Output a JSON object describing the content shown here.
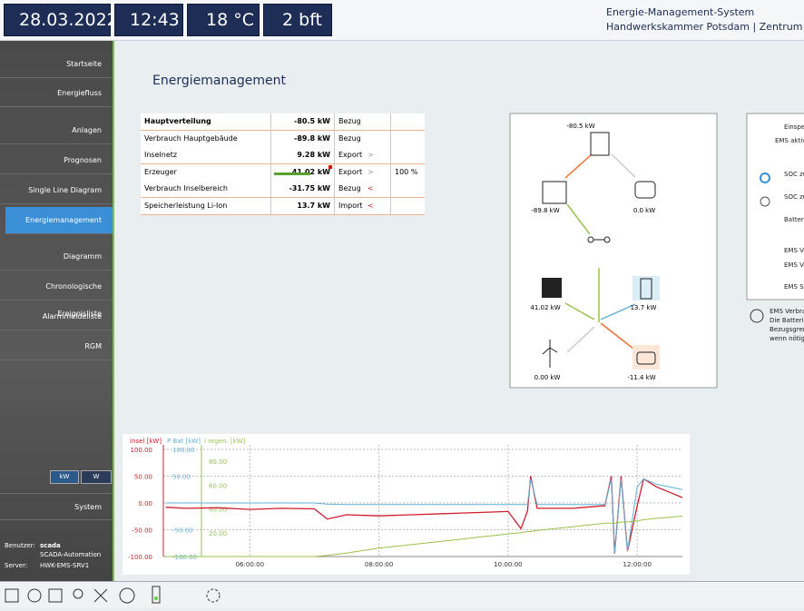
{
  "header": {
    "date": "28.03.2022",
    "time": "12:43",
    "temperature": "18 °C",
    "wind": "2 bft",
    "title": "Energie-Management-System",
    "subtitle": "Handwerkskammer Potsdam | Zentrum f. Gew"
  },
  "nav": {
    "items": [
      "Startseite",
      "Energiefluss",
      "Anlagen",
      "Prognosen",
      "Single Line Diagram",
      "Energiemanagement",
      "Diagramm",
      "Chronologische Ereignisliste",
      "Alarmmeldeliste",
      "RGM"
    ],
    "active": 5,
    "units": [
      "kW",
      "W"
    ],
    "system": "System"
  },
  "user": {
    "user_label": "Benutzer:",
    "user": "scada",
    "group": "SCADA-Automation",
    "server_label": "Server:",
    "server": "HWK-EMS-SRV1"
  },
  "page_title": "Energiemanagement",
  "table": {
    "rows": [
      [
        "Hauptverteilung",
        "-80.5 kW",
        "Bezug",
        "",
        ""
      ],
      [
        "Verbrauch Hauptgebäude",
        "-89.8 kW",
        "Bezug",
        "",
        ""
      ],
      [
        "Inselnetz",
        "9.28 kW",
        "Export",
        ">",
        ""
      ],
      [
        "Erzeuger",
        "41.02 kW",
        "Export",
        ">",
        "100 %"
      ],
      [
        "Verbrauch Inselbereich",
        "-31.75 kW",
        "Bezug",
        "<",
        ""
      ],
      [
        "Speicherleistung Li-Ion",
        "13.7 kW",
        "Import",
        "<",
        ""
      ]
    ]
  },
  "flow": {
    "grid": "-80.5 kW",
    "building": "-89.8 kW",
    "ev": "0.0 kW",
    "pv": "41.02 kW",
    "battery": "13.7 kW",
    "wind": "0.00 kW",
    "ev2": "-11.4 kW"
  },
  "side_panel": {
    "items": [
      "Einspe",
      "EMS aktiv -",
      "SOC zu",
      "SOC zu",
      "Batteri",
      "EMS Ve",
      "EMS Ve",
      "EMS Si"
    ],
    "info": [
      "EMS Verbra",
      "Die Batterie",
      "Bezugsgren",
      "wenn nötig"
    ]
  },
  "trend": {
    "type": "line",
    "axis_labels": [
      "Insel [kW]",
      "P Bat [kW]",
      "I regen. [kW]"
    ],
    "xlim": [
      4.66,
      12.7
    ],
    "xticks": [
      {
        "value": 6,
        "label": "06:00:00"
      },
      {
        "value": 8,
        "label": "08:00:00"
      },
      {
        "value": 10,
        "label": "10:00:00"
      },
      {
        "value": 12,
        "label": "12:00:00"
      }
    ],
    "ylim": [
      -100,
      100
    ],
    "yticks": [
      {
        "value": 100,
        "label": "100.00"
      },
      {
        "value": 50,
        "label": "50.00"
      },
      {
        "value": 0,
        "label": "0.00"
      },
      {
        "value": -50,
        "label": "-50.00"
      },
      {
        "value": -100,
        "label": "-100.00"
      }
    ],
    "y2ticks": [
      {
        "value": 100,
        "label": "100.00"
      },
      {
        "value": 50,
        "label": "50.00"
      },
      {
        "value": -50,
        "label": "-50.00"
      },
      {
        "value": -100,
        "label": "-100.00"
      }
    ],
    "y3lim": [
      0,
      90
    ],
    "y3ticks": [
      {
        "value": 80,
        "label": "80.00"
      },
      {
        "value": 60,
        "label": "60.00"
      },
      {
        "value": 40,
        "label": "40.00"
      },
      {
        "value": 20,
        "label": "20.00"
      }
    ],
    "x": [
      4.7,
      5,
      5.5,
      6,
      6.5,
      7,
      7.2,
      7.5,
      8,
      8.5,
      9,
      9.5,
      10,
      10.2,
      10.3,
      10.35,
      10.45,
      11,
      11.5,
      11.6,
      11.65,
      11.75,
      11.85,
      12,
      12.1,
      12.3,
      12.5,
      12.7
    ],
    "series": [
      {
        "name": "Insel [kW]",
        "color": "#d01c2c",
        "axis": "y",
        "values": [
          -8,
          -10,
          -9,
          -12,
          -10,
          -11,
          -30,
          -22,
          -24,
          -22,
          -20,
          -18,
          -16,
          -48,
          -15,
          50,
          -10,
          -10,
          -5,
          50,
          -95,
          50,
          -90,
          -5,
          45,
          30,
          20,
          10
        ]
      },
      {
        "name": "P Bat [kW]",
        "color": "#5fb3d6",
        "axis": "y2",
        "values": [
          0,
          0,
          0,
          0,
          0,
          0,
          -2,
          -3,
          -3,
          -3,
          -3,
          -3,
          -3,
          -3,
          -3,
          45,
          -3,
          -3,
          -3,
          45,
          -95,
          45,
          -90,
          30,
          45,
          35,
          30,
          25
        ]
      },
      {
        "name": "I regen. [kW]",
        "color": "#9ac24a",
        "axis": "y3",
        "values": [
          0,
          0,
          0,
          0,
          0,
          0,
          1,
          3,
          7,
          10,
          13,
          16,
          19,
          20,
          21,
          21,
          22,
          25,
          28,
          28,
          28,
          29,
          29,
          30,
          31,
          32,
          33,
          34
        ]
      }
    ]
  }
}
